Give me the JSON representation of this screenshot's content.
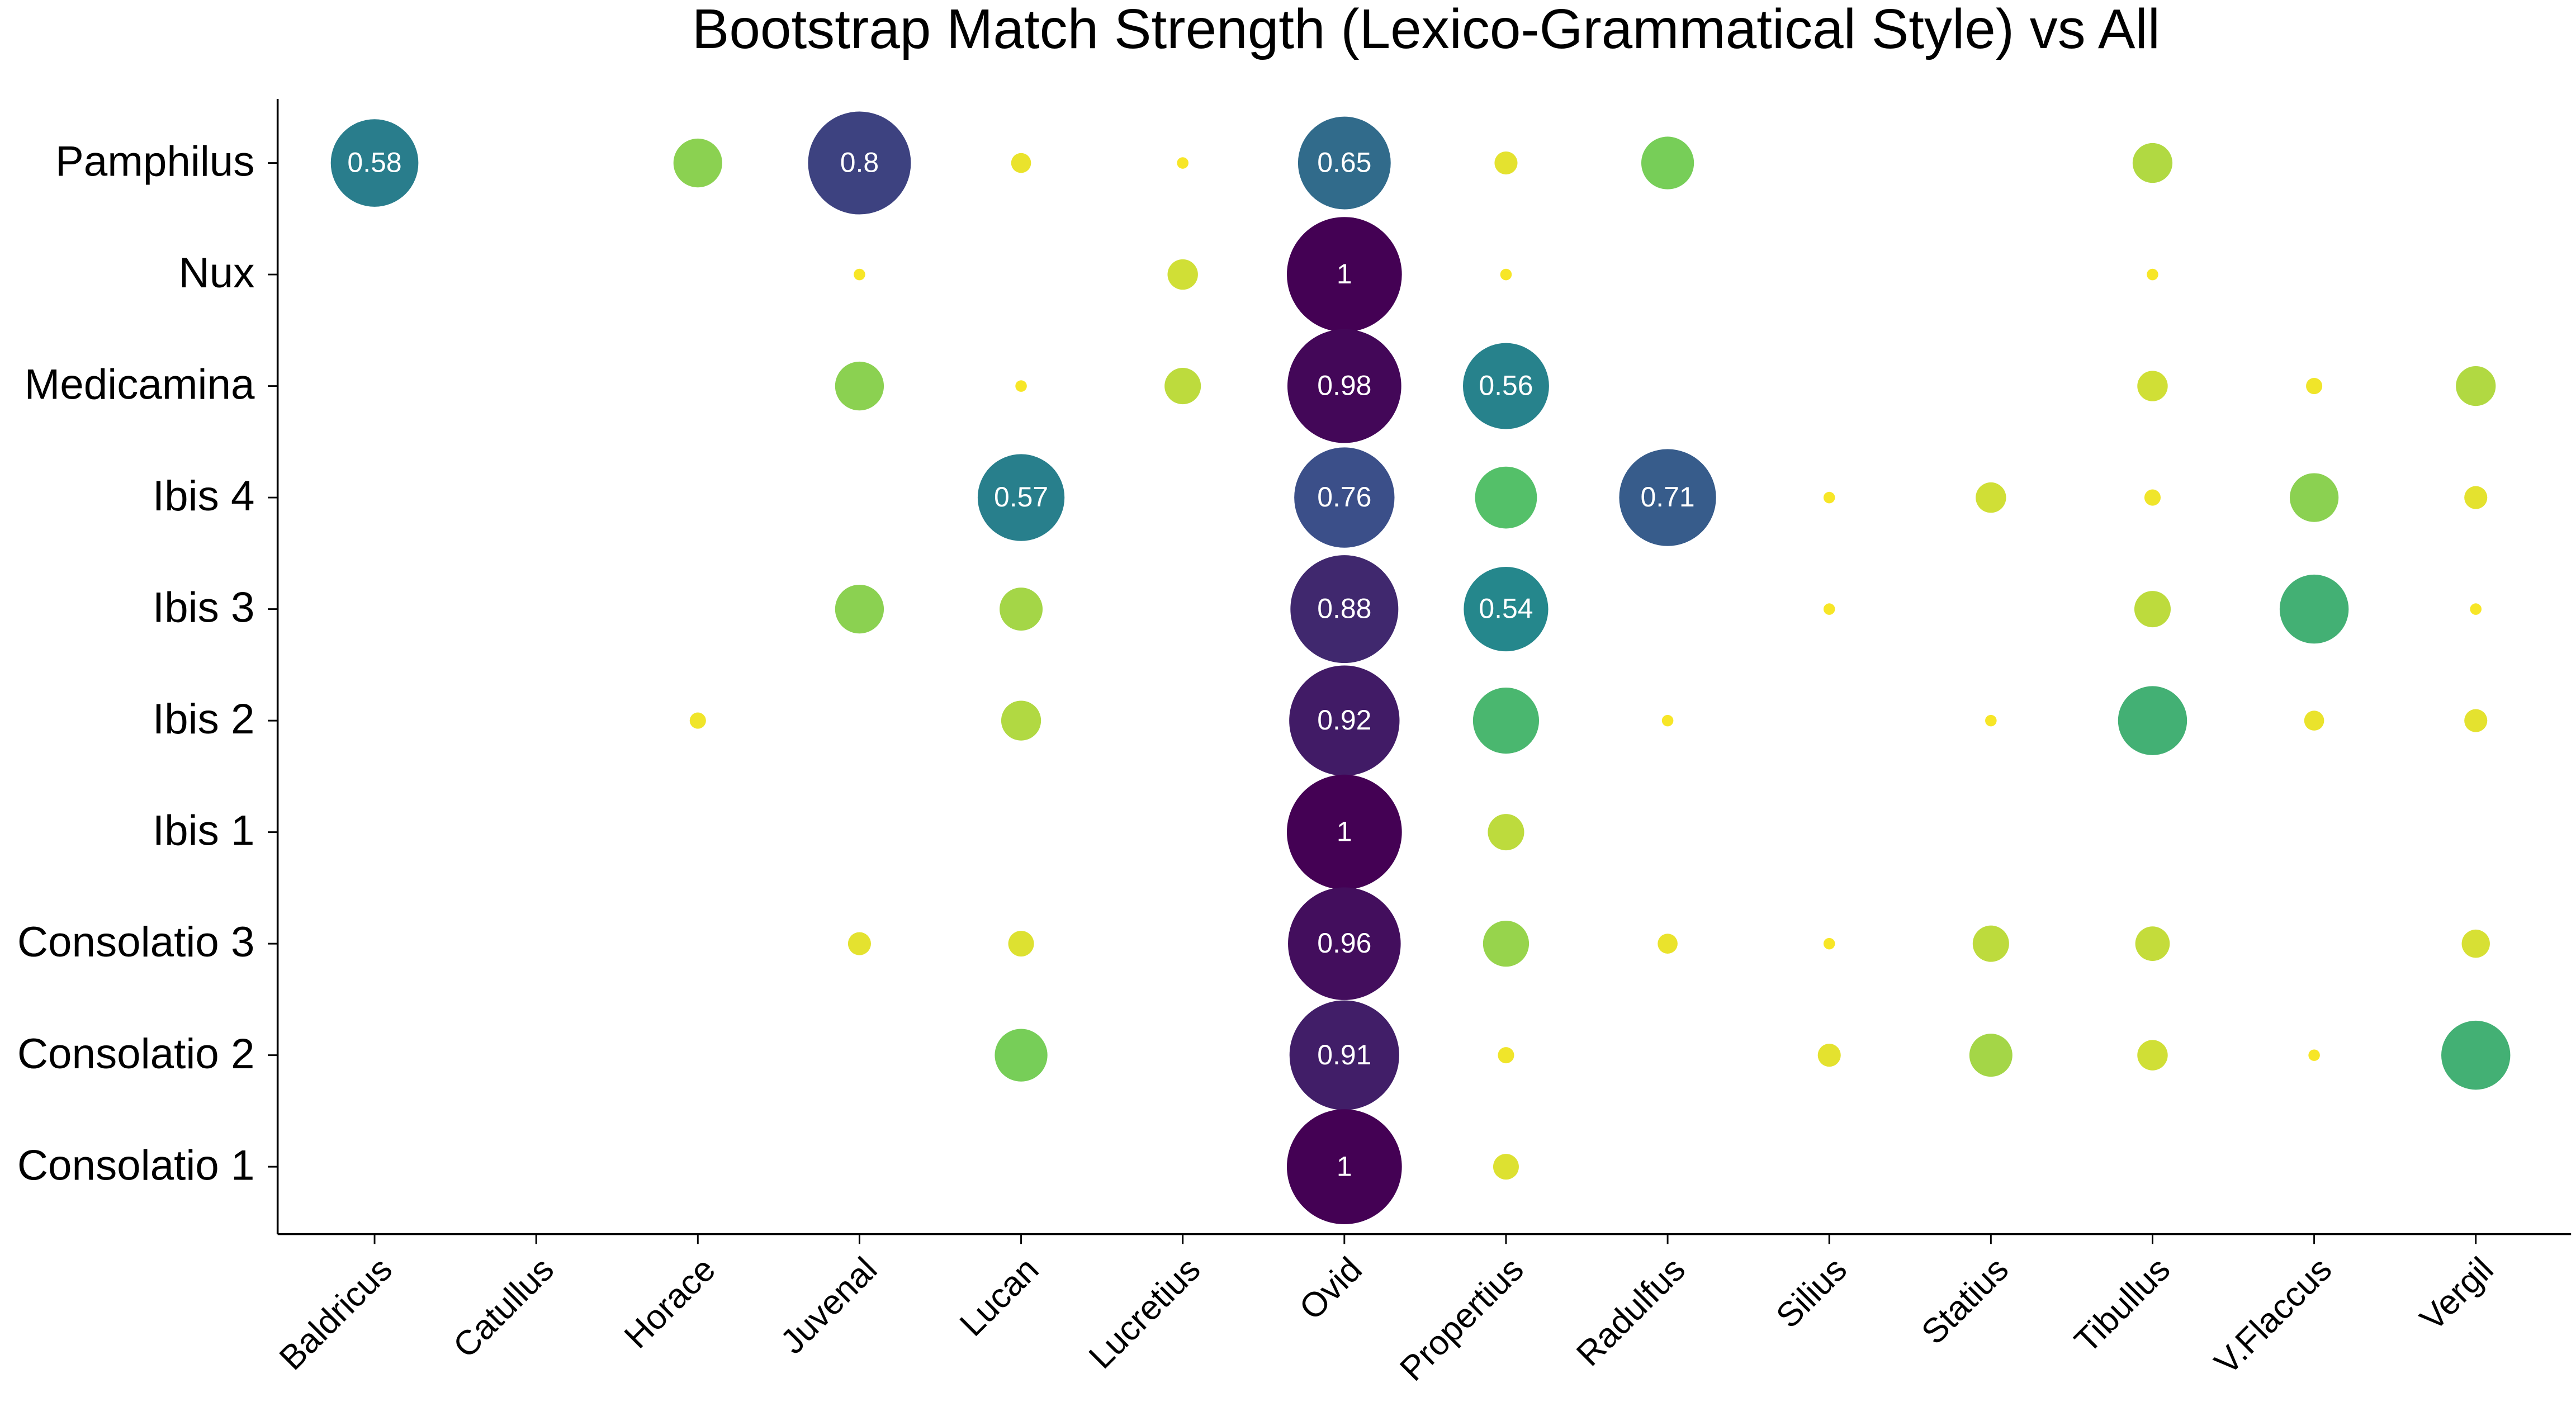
{
  "chart_data": {
    "type": "bubble-matrix",
    "title": "Bootstrap Match Strength (Lexico-Grammatical Style) vs All",
    "x_categories": [
      "Baldricus",
      "Catullus",
      "Horace",
      "Juvenal",
      "Lucan",
      "Lucretius",
      "Ovid",
      "Propertius",
      "Radulfus",
      "Silius",
      "Statius",
      "Tibullus",
      "V.Flaccus",
      "Vergil"
    ],
    "y_categories": [
      "Pamphilus",
      "Nux",
      "Medicamina",
      "Ibis 4",
      "Ibis 3",
      "Ibis 2",
      "Ibis 1",
      "Consolatio 3",
      "Consolatio 2",
      "Consolatio 1"
    ],
    "values": [
      [
        0.58,
        null,
        0.18,
        0.8,
        0.03,
        0.01,
        0.65,
        0.04,
        0.21,
        null,
        null,
        0.12,
        null,
        null
      ],
      [
        null,
        null,
        null,
        0.01,
        null,
        0.07,
        1,
        0.01,
        null,
        null,
        null,
        0.01,
        null,
        null
      ],
      [
        null,
        null,
        null,
        0.18,
        0.01,
        0.1,
        0.98,
        0.56,
        null,
        null,
        null,
        0.07,
        0.02,
        0.12
      ],
      [
        null,
        null,
        null,
        null,
        0.57,
        null,
        0.76,
        0.29,
        0.71,
        0.01,
        0.07,
        0.02,
        0.18,
        0.04
      ],
      [
        null,
        null,
        null,
        0.18,
        0.14,
        null,
        0.88,
        0.54,
        null,
        0.01,
        null,
        0.1,
        0.36,
        0.01
      ],
      [
        null,
        null,
        0.02,
        null,
        0.12,
        null,
        0.92,
        0.33,
        0.01,
        null,
        0.01,
        0.36,
        0.03,
        0.04
      ],
      [
        null,
        null,
        null,
        null,
        null,
        null,
        1,
        0.1,
        null,
        null,
        null,
        null,
        null,
        null
      ],
      [
        null,
        null,
        null,
        0.04,
        0.05,
        null,
        0.96,
        0.16,
        0.03,
        0.01,
        0.1,
        0.09,
        null,
        0.06
      ],
      [
        null,
        null,
        null,
        null,
        0.21,
        null,
        0.91,
        0.02,
        null,
        0.04,
        0.14,
        0.07,
        0.01,
        0.36
      ],
      [
        null,
        null,
        null,
        null,
        null,
        null,
        1,
        0.05,
        null,
        null,
        null,
        null,
        null,
        null
      ]
    ],
    "value_labels": [
      [
        "0.58",
        null,
        null,
        "0.8",
        null,
        null,
        "0.65",
        null,
        null,
        null,
        null,
        null,
        null,
        null
      ],
      [
        null,
        null,
        null,
        null,
        null,
        null,
        "1",
        null,
        null,
        null,
        null,
        null,
        null,
        null
      ],
      [
        null,
        null,
        null,
        null,
        null,
        null,
        "0.98",
        "0.56",
        null,
        null,
        null,
        null,
        null,
        null
      ],
      [
        null,
        null,
        null,
        null,
        "0.57",
        null,
        "0.76",
        null,
        "0.71",
        null,
        null,
        null,
        null,
        null
      ],
      [
        null,
        null,
        null,
        null,
        null,
        null,
        "0.88",
        "0.54",
        null,
        null,
        null,
        null,
        null,
        null
      ],
      [
        null,
        null,
        null,
        null,
        null,
        null,
        "0.92",
        null,
        null,
        null,
        null,
        null,
        null,
        null
      ],
      [
        null,
        null,
        null,
        null,
        null,
        null,
        "1",
        null,
        null,
        null,
        null,
        null,
        null,
        null
      ],
      [
        null,
        null,
        null,
        null,
        null,
        null,
        "0.96",
        null,
        null,
        null,
        null,
        null,
        null,
        null
      ],
      [
        null,
        null,
        null,
        null,
        null,
        null,
        "0.91",
        null,
        null,
        null,
        null,
        null,
        null,
        null
      ],
      [
        null,
        null,
        null,
        null,
        null,
        null,
        "1",
        null,
        null,
        null,
        null,
        null,
        null,
        null
      ]
    ],
    "colormap": "viridis_r"
  }
}
